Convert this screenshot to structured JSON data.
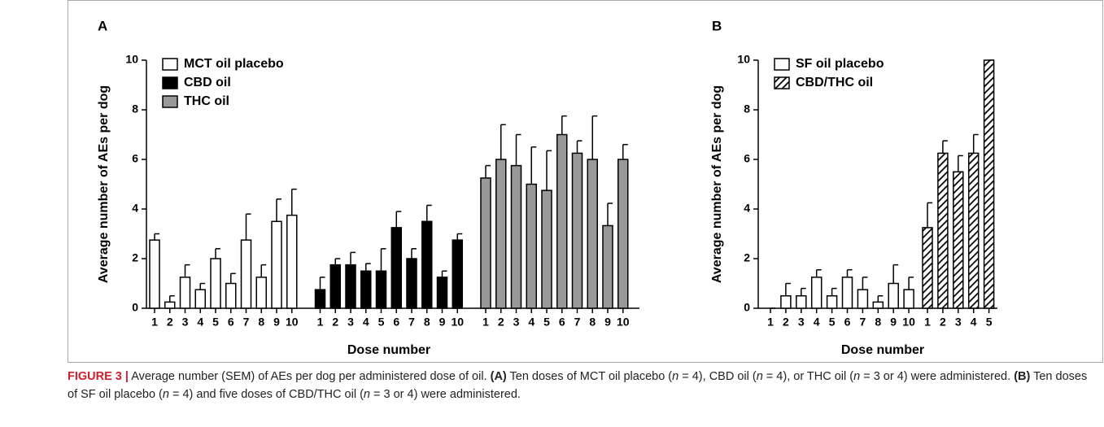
{
  "chart_data": [
    {
      "type": "bar",
      "panel_label": "A",
      "ylabel": "Average number of AEs per dog",
      "xlabel": "Dose number",
      "ylim": [
        0,
        10
      ],
      "yticks": [
        0,
        2,
        4,
        6,
        8,
        10
      ],
      "legend": "upper left",
      "grid": false,
      "series": [
        {
          "name": "MCT oil placebo",
          "color": "#ffffff",
          "categories": [
            "1",
            "2",
            "3",
            "4",
            "5",
            "6",
            "7",
            "8",
            "9",
            "10"
          ],
          "values": [
            2.75,
            0.25,
            1.25,
            0.75,
            2.0,
            1.0,
            2.75,
            1.25,
            3.5,
            3.75
          ],
          "errors": [
            0.25,
            0.25,
            0.5,
            0.25,
            0.4,
            0.4,
            1.05,
            0.5,
            0.9,
            1.05
          ]
        },
        {
          "name": "CBD oil",
          "color": "#000000",
          "categories": [
            "1",
            "2",
            "3",
            "4",
            "5",
            "6",
            "7",
            "8",
            "9",
            "10"
          ],
          "values": [
            0.75,
            1.75,
            1.75,
            1.5,
            1.5,
            3.25,
            2.0,
            3.5,
            1.25,
            2.75
          ],
          "errors": [
            0.5,
            0.25,
            0.5,
            0.3,
            0.9,
            0.65,
            0.4,
            0.65,
            0.25,
            0.25
          ]
        },
        {
          "name": "THC oil",
          "color": "#999999",
          "categories": [
            "1",
            "2",
            "3",
            "4",
            "5",
            "6",
            "7",
            "8",
            "9",
            "10"
          ],
          "values": [
            5.25,
            6.0,
            5.75,
            5.0,
            4.75,
            7.0,
            6.25,
            6.0,
            3.33,
            6.0
          ],
          "errors": [
            0.5,
            1.4,
            1.25,
            1.5,
            1.6,
            0.75,
            0.5,
            1.75,
            0.9,
            0.6
          ]
        }
      ]
    },
    {
      "type": "bar",
      "panel_label": "B",
      "ylabel": "Average number of AEs per dog",
      "xlabel": "Dose number",
      "ylim": [
        0,
        10
      ],
      "yticks": [
        0,
        2,
        4,
        6,
        8,
        10
      ],
      "legend": "upper left",
      "grid": false,
      "series": [
        {
          "name": "SF oil placebo",
          "color": "#ffffff",
          "categories": [
            "1",
            "2",
            "3",
            "4",
            "5",
            "6",
            "7",
            "8",
            "9",
            "10"
          ],
          "values": [
            0,
            0.5,
            0.5,
            1.25,
            0.5,
            1.25,
            0.75,
            0.25,
            1.0,
            0.75
          ],
          "errors": [
            0,
            0.5,
            0.3,
            0.3,
            0.3,
            0.3,
            0.5,
            0.25,
            0.75,
            0.5
          ]
        },
        {
          "name": "CBD/THC oil",
          "color": "#000000",
          "pattern": "hatch",
          "categories": [
            "1",
            "2",
            "3",
            "4",
            "5"
          ],
          "values": [
            3.25,
            6.25,
            5.5,
            6.25,
            10
          ],
          "errors": [
            1.0,
            0.5,
            0.65,
            0.75,
            0
          ]
        }
      ]
    }
  ],
  "caption": [
    "FIGURE 3 |",
    " Average number (SEM) of AEs per dog per administered dose of oil. ",
    "(A)",
    " Ten doses of MCT oil placebo (",
    "n",
    " = 4), CBD oil (",
    "n",
    " = 4), or THC oil (",
    "n",
    " = 3 or 4) were administered. ",
    "(B)",
    " Ten doses of SF oil placebo (",
    "n",
    " = 4) and five doses of CBD/THC oil (",
    "n",
    " = 3 or 4) were administered."
  ]
}
